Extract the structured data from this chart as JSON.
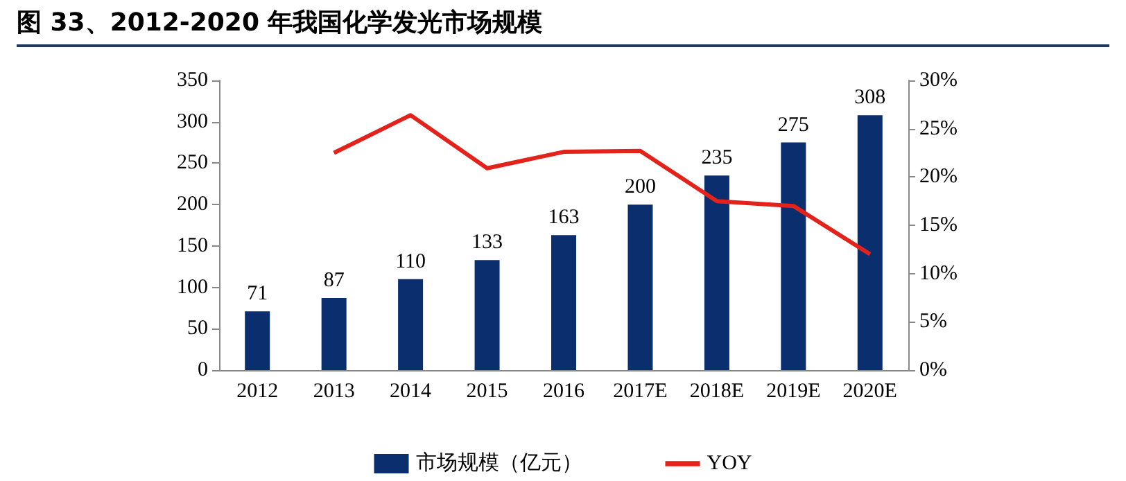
{
  "chart_data": {
    "type": "bar",
    "title": "图 33、2012-2020 年我国化学发光市场规模",
    "categories": [
      "2012",
      "2013",
      "2014",
      "2015",
      "2016",
      "2017E",
      "2018E",
      "2019E",
      "2020E"
    ],
    "series": [
      {
        "name": "市场规模（亿元）",
        "color": "#0b2f6e",
        "values": [
          71,
          87,
          110,
          133,
          163,
          200,
          235,
          275,
          308
        ],
        "value_labels": [
          "71",
          "87",
          "110",
          "133",
          "163",
          "200",
          "235",
          "275",
          "308"
        ]
      },
      {
        "name": "YOY",
        "type": "line",
        "axis": "y2",
        "color": "#e3221b",
        "values": [
          null,
          22.5,
          26.4,
          20.9,
          22.6,
          22.7,
          17.5,
          17.0,
          12.0
        ]
      }
    ],
    "ylim": [
      0,
      350
    ],
    "yticks": [
      0,
      50,
      100,
      150,
      200,
      250,
      300,
      350
    ],
    "y2lim": [
      0,
      30
    ],
    "y2ticks": [
      {
        "value": 0,
        "label": "0%"
      },
      {
        "value": 5,
        "label": "5%"
      },
      {
        "value": 10,
        "label": "10%"
      },
      {
        "value": 15,
        "label": "15%"
      },
      {
        "value": 20,
        "label": "20%"
      },
      {
        "value": 25,
        "label": "25%"
      },
      {
        "value": 30,
        "label": "30%"
      }
    ],
    "grid": false,
    "legend": "bottom",
    "marker": "none",
    "line_style": "solid"
  }
}
